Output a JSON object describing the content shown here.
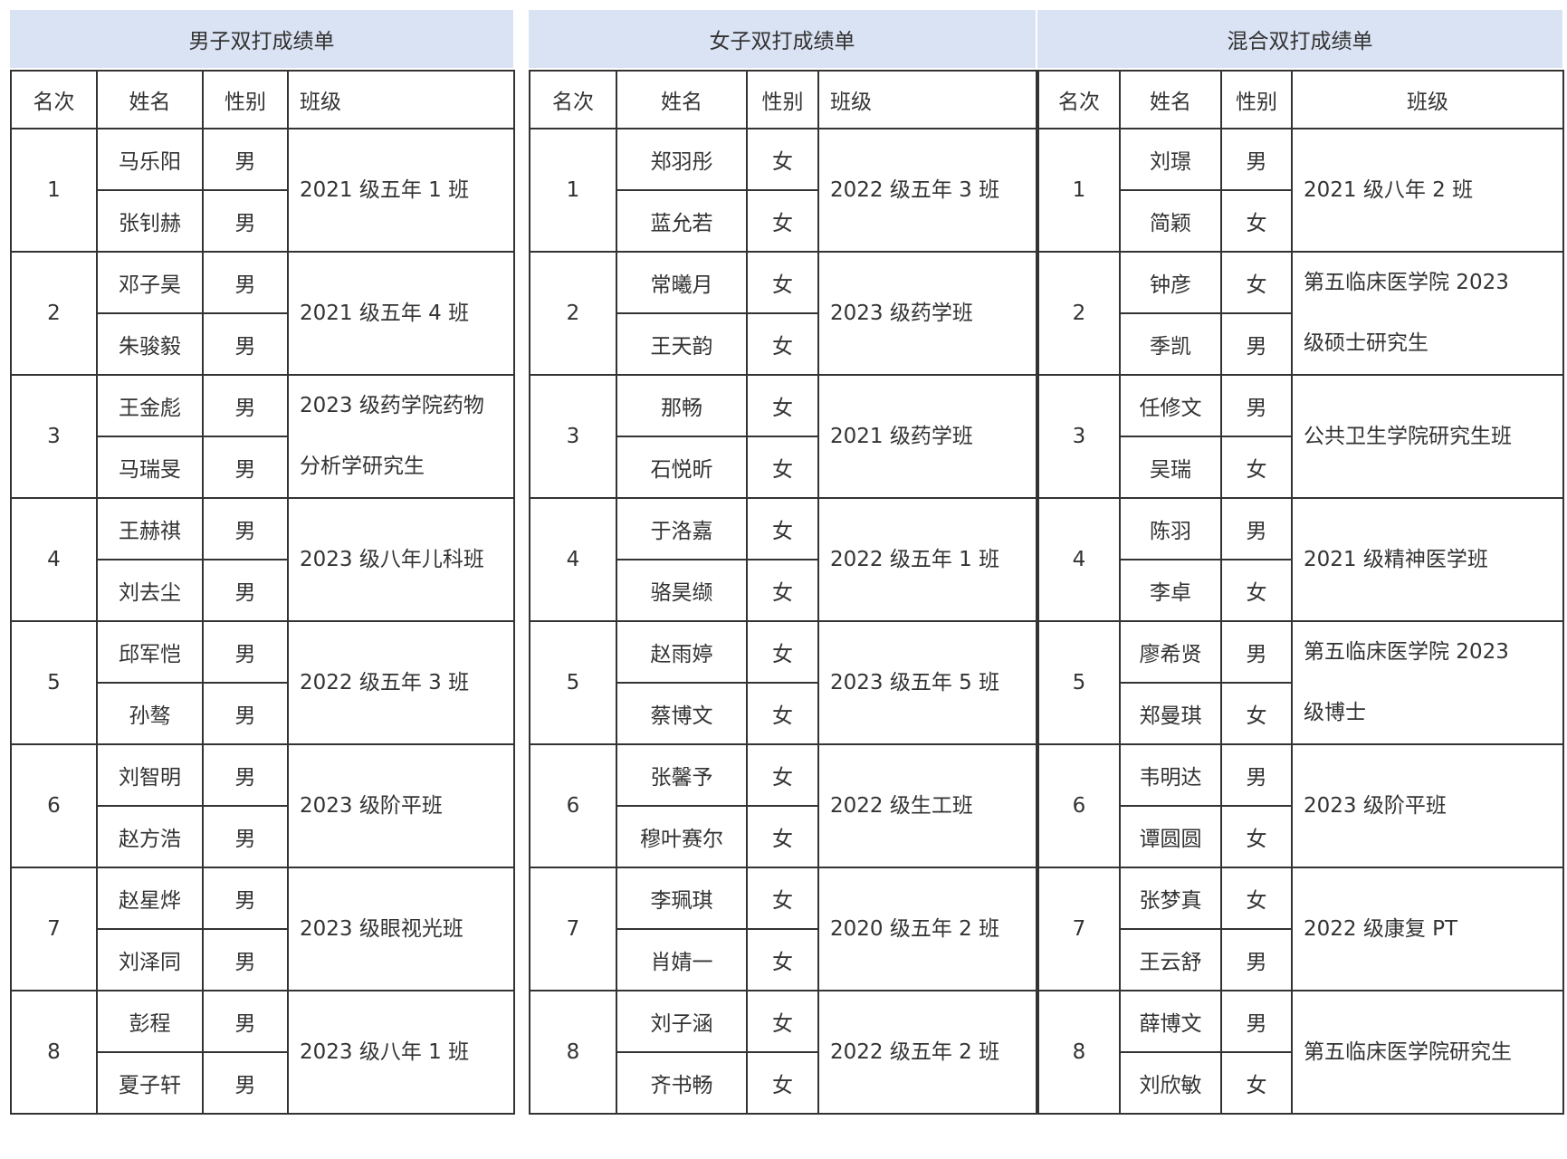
{
  "tables": [
    {
      "title": "男子双打成绩单",
      "headers": [
        "名次",
        "姓名",
        "性别",
        "班级"
      ],
      "header_class_align": "left",
      "rows": [
        {
          "rank": "1",
          "players": [
            {
              "name": "马乐阳",
              "gender": "男"
            },
            {
              "name": "张钊赫",
              "gender": "男"
            }
          ],
          "class_lines": [
            "2021 级五年 1 班"
          ]
        },
        {
          "rank": "2",
          "players": [
            {
              "name": "邓子昊",
              "gender": "男"
            },
            {
              "name": "朱骏毅",
              "gender": "男"
            }
          ],
          "class_lines": [
            "2021 级五年 4 班"
          ]
        },
        {
          "rank": "3",
          "players": [
            {
              "name": "王金彪",
              "gender": "男"
            },
            {
              "name": "马瑞旻",
              "gender": "男"
            }
          ],
          "class_lines": [
            "2023 级药学院药物",
            "分析学研究生"
          ]
        },
        {
          "rank": "4",
          "players": [
            {
              "name": "王赫祺",
              "gender": "男"
            },
            {
              "name": "刘去尘",
              "gender": "男"
            }
          ],
          "class_lines": [
            "2023 级八年儿科班"
          ]
        },
        {
          "rank": "5",
          "players": [
            {
              "name": "邱军恺",
              "gender": "男"
            },
            {
              "name": "孙骜",
              "gender": "男"
            }
          ],
          "class_lines": [
            "2022 级五年 3 班"
          ]
        },
        {
          "rank": "6",
          "players": [
            {
              "name": "刘智明",
              "gender": "男"
            },
            {
              "name": "赵方浩",
              "gender": "男"
            }
          ],
          "class_lines": [
            "2023 级阶平班"
          ]
        },
        {
          "rank": "7",
          "players": [
            {
              "name": "赵星烨",
              "gender": "男"
            },
            {
              "name": "刘泽同",
              "gender": "男"
            }
          ],
          "class_lines": [
            "2023 级眼视光班"
          ]
        },
        {
          "rank": "8",
          "players": [
            {
              "name": "彭程",
              "gender": "男"
            },
            {
              "name": "夏子轩",
              "gender": "男"
            }
          ],
          "class_lines": [
            "2023 级八年 1 班"
          ]
        }
      ]
    },
    {
      "title": "女子双打成绩单",
      "headers": [
        "名次",
        "姓名",
        "性别",
        "班级"
      ],
      "header_class_align": "left",
      "rows": [
        {
          "rank": "1",
          "players": [
            {
              "name": "郑羽彤",
              "gender": "女"
            },
            {
              "name": "蓝允若",
              "gender": "女"
            }
          ],
          "class_lines": [
            "2022 级五年 3 班"
          ]
        },
        {
          "rank": "2",
          "players": [
            {
              "name": "常曦月",
              "gender": "女"
            },
            {
              "name": "王天韵",
              "gender": "女"
            }
          ],
          "class_lines": [
            "2023 级药学班"
          ]
        },
        {
          "rank": "3",
          "players": [
            {
              "name": "那畅",
              "gender": "女"
            },
            {
              "name": "石悦昕",
              "gender": "女"
            }
          ],
          "class_lines": [
            "2021 级药学班"
          ]
        },
        {
          "rank": "4",
          "players": [
            {
              "name": "于洛嘉",
              "gender": "女"
            },
            {
              "name": "骆昊缬",
              "gender": "女"
            }
          ],
          "class_lines": [
            "2022 级五年 1 班"
          ]
        },
        {
          "rank": "5",
          "players": [
            {
              "name": "赵雨婷",
              "gender": "女"
            },
            {
              "name": "蔡博文",
              "gender": "女"
            }
          ],
          "class_lines": [
            "2023 级五年 5 班"
          ]
        },
        {
          "rank": "6",
          "players": [
            {
              "name": "张馨予",
              "gender": "女"
            },
            {
              "name": "穆叶赛尔",
              "gender": "女"
            }
          ],
          "class_lines": [
            "2022 级生工班"
          ]
        },
        {
          "rank": "7",
          "players": [
            {
              "name": "李珮琪",
              "gender": "女"
            },
            {
              "name": "肖婧一",
              "gender": "女"
            }
          ],
          "class_lines": [
            "2020 级五年 2 班"
          ]
        },
        {
          "rank": "8",
          "players": [
            {
              "name": "刘子涵",
              "gender": "女"
            },
            {
              "name": "齐书畅",
              "gender": "女"
            }
          ],
          "class_lines": [
            "2022 级五年 2 班"
          ]
        }
      ]
    },
    {
      "title": "混合双打成绩单",
      "headers": [
        "名次",
        "姓名",
        "性别",
        "班级"
      ],
      "header_class_align": "center",
      "rows": [
        {
          "rank": "1",
          "players": [
            {
              "name": "刘璟",
              "gender": "男"
            },
            {
              "name": "简颖",
              "gender": "女"
            }
          ],
          "class_lines": [
            "2021 级八年 2 班"
          ]
        },
        {
          "rank": "2",
          "players": [
            {
              "name": "钟彦",
              "gender": "女"
            },
            {
              "name": "季凯",
              "gender": "男"
            }
          ],
          "class_lines": [
            "第五临床医学院 2023",
            "级硕士研究生"
          ]
        },
        {
          "rank": "3",
          "players": [
            {
              "name": "任修文",
              "gender": "男"
            },
            {
              "name": "吴瑞",
              "gender": "女"
            }
          ],
          "class_lines": [
            "公共卫生学院研究生班"
          ]
        },
        {
          "rank": "4",
          "players": [
            {
              "name": "陈羽",
              "gender": "男"
            },
            {
              "name": "李卓",
              "gender": "女"
            }
          ],
          "class_lines": [
            "2021 级精神医学班"
          ]
        },
        {
          "rank": "5",
          "players": [
            {
              "name": "廖希贤",
              "gender": "男"
            },
            {
              "name": "郑曼琪",
              "gender": "女"
            }
          ],
          "class_lines": [
            "第五临床医学院 2023",
            "级博士"
          ]
        },
        {
          "rank": "6",
          "players": [
            {
              "name": "韦明达",
              "gender": "男"
            },
            {
              "name": "谭圆圆",
              "gender": "女"
            }
          ],
          "class_lines": [
            "2023 级阶平班"
          ]
        },
        {
          "rank": "7",
          "players": [
            {
              "name": "张梦真",
              "gender": "女"
            },
            {
              "name": "王云舒",
              "gender": "男"
            }
          ],
          "class_lines": [
            "2022 级康复 PT"
          ]
        },
        {
          "rank": "8",
          "players": [
            {
              "name": "薛博文",
              "gender": "男"
            },
            {
              "name": "刘欣敏",
              "gender": "女"
            }
          ],
          "class_lines": [
            "第五临床医学院研究生"
          ]
        }
      ]
    }
  ],
  "colors": {
    "title_band": "#dae3f3",
    "border": "#333333",
    "text": "#333333"
  }
}
